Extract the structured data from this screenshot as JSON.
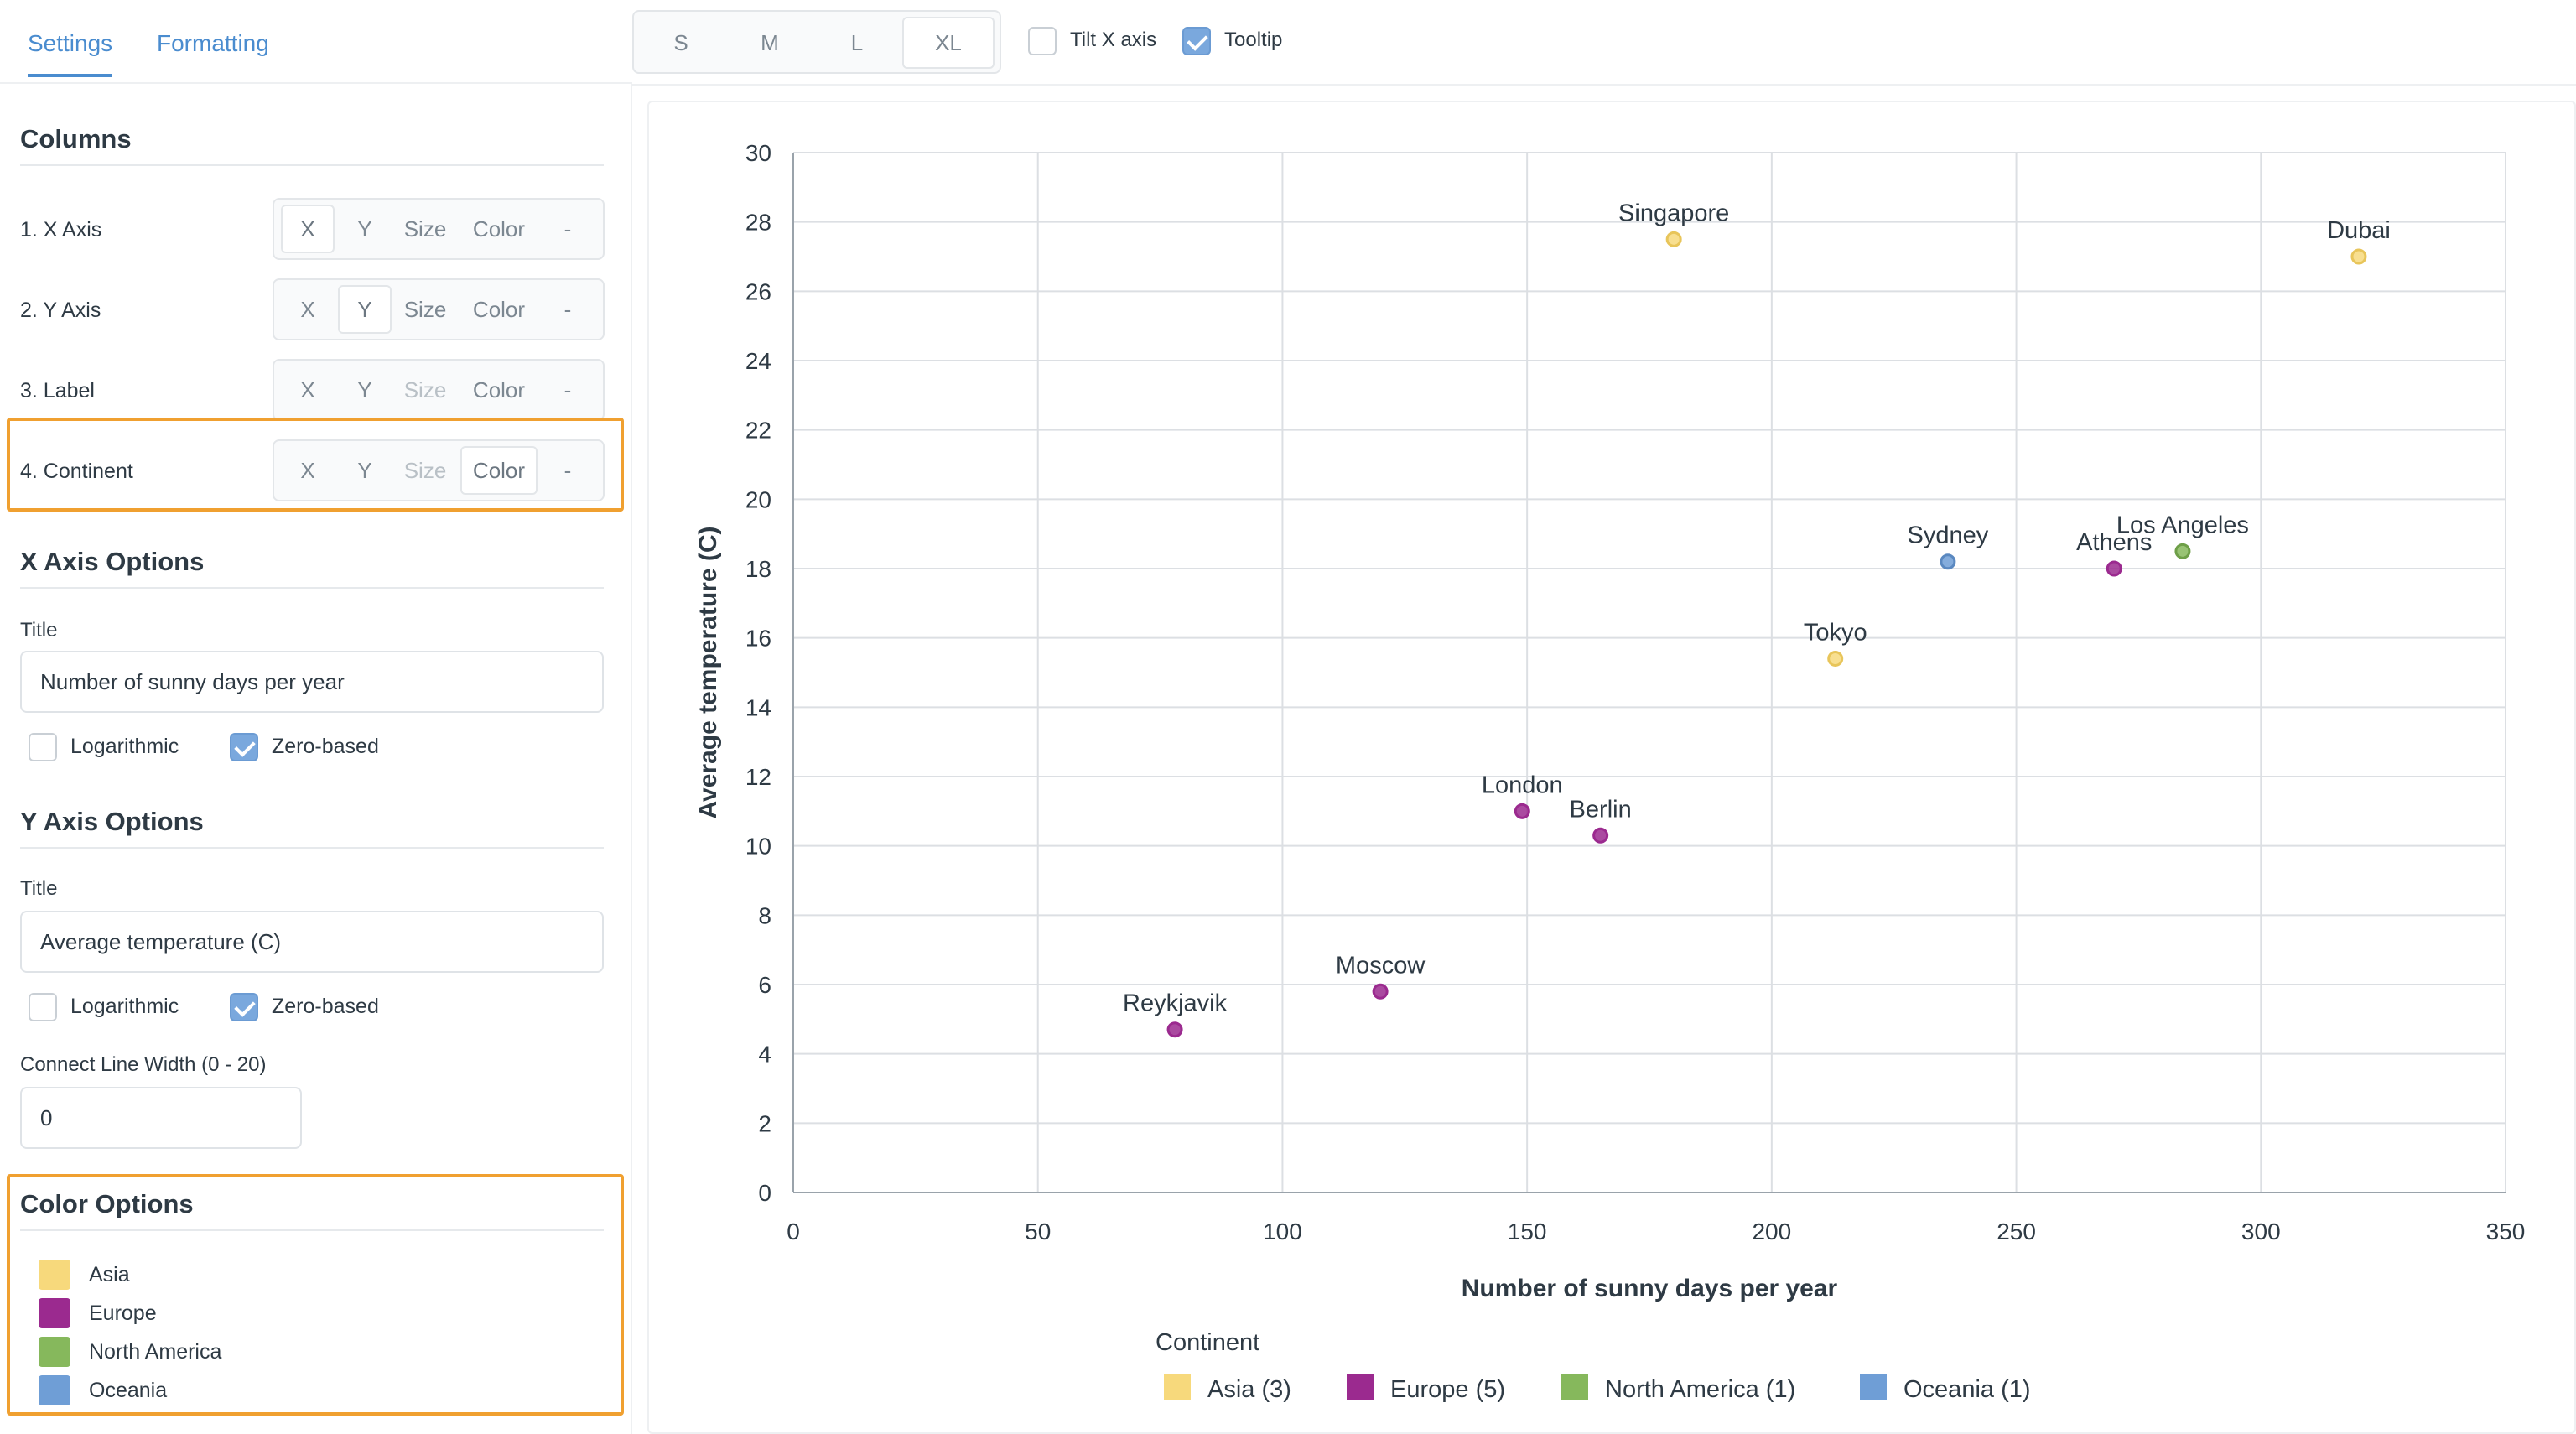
{
  "tabs": {
    "settings": "Settings",
    "formatting": "Formatting"
  },
  "columns": {
    "title": "Columns",
    "options": [
      "X",
      "Y",
      "Size",
      "Color",
      "-"
    ],
    "rows": [
      {
        "label": "1. X Axis",
        "selected": "X"
      },
      {
        "label": "2. Y Axis",
        "selected": "Y"
      },
      {
        "label": "3. Label",
        "selected": ""
      },
      {
        "label": "4. Continent",
        "selected": "Color"
      }
    ]
  },
  "x_axis_options": {
    "title": "X Axis Options",
    "field_label": "Title",
    "value": "Number of sunny days per year",
    "logarithmic_label": "Logarithmic",
    "logarithmic": false,
    "zero_based_label": "Zero-based",
    "zero_based": true
  },
  "y_axis_options": {
    "title": "Y Axis Options",
    "field_label": "Title",
    "value": "Average temperature (C)",
    "logarithmic_label": "Logarithmic",
    "logarithmic": false,
    "zero_based_label": "Zero-based",
    "zero_based": true,
    "connect_line_label": "Connect Line Width (0 - 20)",
    "connect_line_value": "0"
  },
  "color_options": {
    "title": "Color Options",
    "items": [
      {
        "label": "Asia",
        "color": "#f7d97c"
      },
      {
        "label": "Europe",
        "color": "#9b2a8f"
      },
      {
        "label": "North America",
        "color": "#86b85c"
      },
      {
        "label": "Oceania",
        "color": "#6f9ed6"
      }
    ]
  },
  "toolbar": {
    "sizes": [
      "S",
      "M",
      "L",
      "XL"
    ],
    "active_size": "XL",
    "tilt_label": "Tilt X axis",
    "tilt": false,
    "tooltip_label": "Tooltip",
    "tooltip": true
  },
  "chart_data": {
    "type": "scatter",
    "xlabel": "Number of sunny days per year",
    "ylabel": "Average temperature (C)",
    "xlim": [
      0,
      350
    ],
    "ylim": [
      0,
      30
    ],
    "xticks": [
      0,
      50,
      100,
      150,
      200,
      250,
      300,
      350
    ],
    "yticks": [
      0,
      2,
      4,
      6,
      8,
      10,
      12,
      14,
      16,
      18,
      20,
      22,
      24,
      26,
      28,
      30
    ],
    "grid": true,
    "legend_title": "Continent",
    "legend": [
      {
        "label": "Asia (3)",
        "color": "#f7d97c",
        "stroke": "#e8c55a"
      },
      {
        "label": "Europe (5)",
        "color": "#9b2a8f",
        "stroke": "#9b2a8f"
      },
      {
        "label": "North America (1)",
        "color": "#86b85c",
        "stroke": "#6e9f48"
      },
      {
        "label": "Oceania (1)",
        "color": "#6f9ed6",
        "stroke": "#5a88c0"
      }
    ],
    "points": [
      {
        "label": "Singapore",
        "x": 180,
        "y": 27.5,
        "group": 0
      },
      {
        "label": "Dubai",
        "x": 320,
        "y": 27,
        "group": 0
      },
      {
        "label": "Sydney",
        "x": 236,
        "y": 18.2,
        "group": 3
      },
      {
        "label": "Athens",
        "x": 270,
        "y": 18,
        "group": 1
      },
      {
        "label": "Los Angeles",
        "x": 284,
        "y": 18.5,
        "group": 2
      },
      {
        "label": "Tokyo",
        "x": 213,
        "y": 15.4,
        "group": 0
      },
      {
        "label": "London",
        "x": 149,
        "y": 11,
        "group": 1
      },
      {
        "label": "Berlin",
        "x": 165,
        "y": 10.3,
        "group": 1
      },
      {
        "label": "Moscow",
        "x": 120,
        "y": 5.8,
        "group": 1
      },
      {
        "label": "Reykjavik",
        "x": 78,
        "y": 4.7,
        "group": 1
      }
    ]
  }
}
